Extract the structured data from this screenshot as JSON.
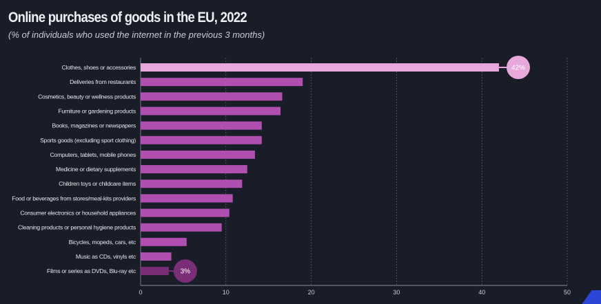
{
  "chart_data": {
    "type": "bar",
    "orientation": "horizontal",
    "title": "Online purchases of goods in the EU, 2022",
    "subtitle": "(% of individuals who used the internet in the previous 3 months)",
    "categories": [
      "Clothes, shoes or accessories",
      "Deliveries from restaurants",
      "Cosmetics, beauty or wellness products",
      "Furniture or gardening products",
      "Books, magazines or newspapers",
      "Sports goods (excluding sport clothing)",
      "Computers, tablets, mobile phones",
      "Medicine or dietary supplements",
      "Children toys or childcare items",
      "Food or beverages from stores/meal-kits providers",
      "Consumer electronics or household appliances",
      "Cleaning products or personal hygiene products",
      "Bicycles, mopeds, cars, etc",
      "Music as CDs, vinyls etc",
      "Films or series as DVDs, Blu-ray etc"
    ],
    "values": [
      42,
      19,
      16.6,
      16.4,
      14.2,
      14.2,
      13.4,
      12.5,
      11.9,
      10.8,
      10.4,
      9.5,
      5.4,
      3.6,
      3.3
    ],
    "annotations": [
      {
        "category": "Clothes, shoes or accessories",
        "label": "42%"
      },
      {
        "category": "Films or series as DVDs, Blu-ray etc",
        "label": "3%"
      }
    ],
    "xlim": [
      0,
      50
    ],
    "xticks": [
      "0",
      "10",
      "20",
      "30",
      "40",
      "50"
    ],
    "grid": "vertical dashed",
    "colors": {
      "background": "#181d28",
      "bar": "#b04fb0",
      "highlight_max": "#e8a8dc",
      "highlight_min": "#7a2e78",
      "text": "#e3e5ea"
    }
  }
}
